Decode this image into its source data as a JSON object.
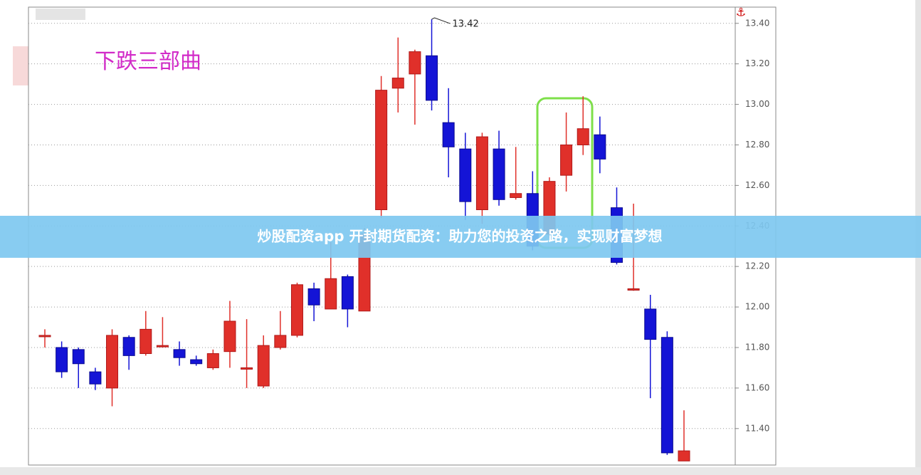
{
  "chart_data": {
    "type": "candlestick",
    "title": "下跌三部曲",
    "open": [
      11.86,
      11.8,
      11.79,
      11.68,
      11.6,
      11.85,
      11.77,
      11.81,
      11.79,
      11.74,
      11.7,
      11.78,
      11.7,
      11.61,
      11.8,
      11.86,
      12.09,
      11.99,
      12.15,
      11.98,
      12.48,
      13.08,
      13.15,
      13.24,
      12.91,
      12.78,
      12.48,
      12.78,
      12.54,
      12.56,
      12.36,
      12.65,
      12.8,
      12.85,
      12.49,
      12.09,
      11.99,
      11.85,
      11.24
    ],
    "high": [
      11.89,
      11.83,
      11.8,
      11.7,
      11.89,
      11.86,
      11.98,
      11.95,
      11.83,
      11.76,
      11.79,
      12.03,
      11.94,
      11.86,
      11.98,
      12.12,
      12.12,
      12.32,
      12.16,
      12.39,
      13.14,
      13.33,
      13.27,
      13.42,
      13.08,
      12.86,
      12.86,
      12.87,
      12.79,
      12.67,
      12.64,
      12.96,
      13.04,
      12.94,
      12.59,
      12.51,
      12.06,
      11.88,
      11.49
    ],
    "low": [
      11.8,
      11.65,
      11.6,
      11.59,
      11.51,
      11.69,
      11.76,
      11.8,
      11.71,
      11.71,
      11.69,
      11.7,
      11.6,
      11.6,
      11.79,
      11.85,
      11.93,
      11.99,
      11.9,
      11.98,
      12.44,
      12.96,
      12.9,
      12.97,
      12.64,
      12.43,
      12.41,
      12.5,
      12.53,
      12.28,
      12.34,
      12.57,
      12.75,
      12.66,
      12.21,
      12.08,
      11.55,
      11.27,
      11.24
    ],
    "close": [
      11.86,
      11.68,
      11.72,
      11.62,
      11.86,
      11.76,
      11.89,
      11.81,
      11.75,
      11.72,
      11.77,
      11.93,
      11.7,
      11.81,
      11.86,
      12.11,
      12.01,
      12.14,
      11.99,
      12.36,
      13.07,
      13.13,
      13.26,
      13.02,
      12.79,
      12.52,
      12.84,
      12.53,
      12.56,
      12.3,
      12.62,
      12.8,
      12.88,
      12.73,
      12.22,
      12.09,
      11.84,
      11.28,
      11.29
    ],
    "colors": {
      "up": "#e0302a",
      "down": "#1414d6"
    },
    "annotation": 13.42,
    "ylim": [
      11.22,
      13.48
    ],
    "yticks": [
      {
        "value": 11.4,
        "label": "11.40"
      },
      {
        "value": 11.6,
        "label": "11.60"
      },
      {
        "value": 11.8,
        "label": "11.80"
      },
      {
        "value": 12,
        "label": "12.00"
      },
      {
        "value": 12.2,
        "label": "12.20"
      },
      {
        "value": 12.4,
        "label": "12.40"
      },
      {
        "value": 12.6,
        "label": "12.60"
      },
      {
        "value": 12.8,
        "label": "12.80"
      },
      {
        "value": 13,
        "label": "13.00"
      },
      {
        "value": 13.2,
        "label": "13.20"
      },
      {
        "value": 13.4,
        "label": "13.40"
      }
    ],
    "grid": true
  },
  "banner": {
    "text": "炒股配资app 开封期货配资：助力您的投资之路，实现财富梦想"
  }
}
